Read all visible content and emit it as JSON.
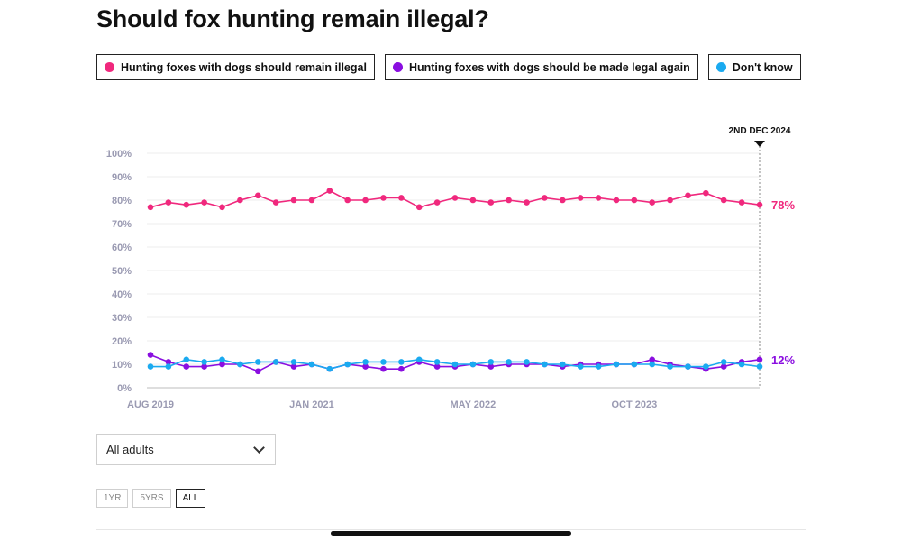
{
  "title": "Should fox hunting remain illegal?",
  "legend": [
    {
      "label": "Hunting foxes with dogs should remain illegal",
      "color": "#f0287d"
    },
    {
      "label": "Hunting foxes with dogs should be made legal again",
      "color": "#8a0ee0"
    },
    {
      "label": "Don't know",
      "color": "#1aaaf0"
    }
  ],
  "chart_data": {
    "type": "line",
    "y_ticks": [
      "100%",
      "90%",
      "80%",
      "70%",
      "60%",
      "50%",
      "40%",
      "30%",
      "20%",
      "10%",
      "0%"
    ],
    "ylim": [
      0,
      100
    ],
    "x_ticks": [
      {
        "index": 0,
        "label": "AUG 2019"
      },
      {
        "index": 9,
        "label": "JAN 2021"
      },
      {
        "index": 18,
        "label": "MAY 2022"
      },
      {
        "index": 27,
        "label": "OCT 2023"
      }
    ],
    "marker": {
      "label": "2ND DEC 2024"
    },
    "series": [
      {
        "name": "Hunting foxes with dogs should remain illegal",
        "color": "#f0287d",
        "end_label": "78%",
        "values": [
          77,
          79,
          78,
          79,
          77,
          80,
          82,
          79,
          80,
          80,
          84,
          80,
          80,
          81,
          81,
          77,
          79,
          81,
          80,
          79,
          80,
          79,
          81,
          80,
          81,
          81,
          80,
          80,
          79,
          80,
          82,
          83,
          80,
          79,
          78
        ]
      },
      {
        "name": "Hunting foxes with dogs should be made legal again",
        "color": "#8a0ee0",
        "end_label": "12%",
        "values": [
          14,
          11,
          9,
          9,
          10,
          10,
          7,
          11,
          9,
          10,
          8,
          10,
          9,
          8,
          8,
          11,
          9,
          9,
          10,
          9,
          10,
          10,
          10,
          9,
          10,
          10,
          10,
          10,
          12,
          10,
          9,
          8,
          9,
          11,
          12
        ]
      },
      {
        "name": "Don't know",
        "color": "#1aaaf0",
        "values": [
          9,
          9,
          12,
          11,
          12,
          10,
          11,
          11,
          11,
          10,
          8,
          10,
          11,
          11,
          11,
          12,
          11,
          10,
          10,
          11,
          11,
          11,
          10,
          10,
          9,
          9,
          10,
          10,
          10,
          9,
          9,
          9,
          11,
          10,
          9
        ]
      }
    ]
  },
  "filter": {
    "selected": "All adults"
  },
  "ranges": [
    {
      "label": "1YR",
      "active": false
    },
    {
      "label": "5YRS",
      "active": false
    },
    {
      "label": "ALL",
      "active": true
    }
  ]
}
